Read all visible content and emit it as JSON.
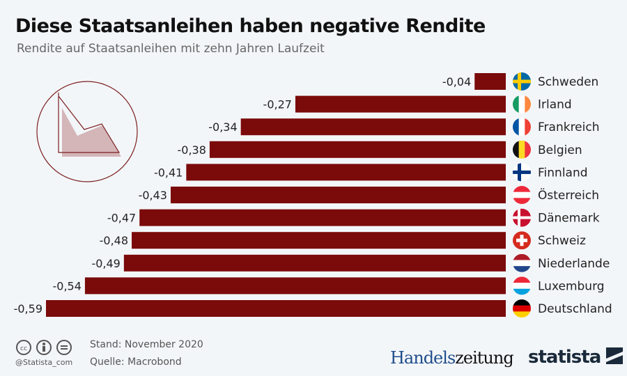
{
  "title": "Diese Staatsanleihen haben negative Rendite",
  "subtitle": "Rendite auf Staatsanleihen mit zehn Jahren Laufzeit",
  "colors": {
    "bar": "#7b0a0a",
    "background": "#f3f6f9"
  },
  "chart_data": {
    "type": "bar",
    "orientation": "horizontal",
    "categories": [
      "Schweden",
      "Irland",
      "Frankreich",
      "Belgien",
      "Finnland",
      "Österreich",
      "Dänemark",
      "Schweiz",
      "Niederlande",
      "Luxemburg",
      "Deutschland"
    ],
    "values": [
      -0.04,
      -0.27,
      -0.34,
      -0.38,
      -0.41,
      -0.43,
      -0.47,
      -0.48,
      -0.49,
      -0.54,
      -0.59
    ],
    "labels": [
      "-0,04",
      "-0,27",
      "-0,34",
      "-0,38",
      "-0,41",
      "-0,43",
      "-0,47",
      "-0,48",
      "-0,49",
      "-0,54",
      "-0,59"
    ],
    "flag_icons": [
      "flag-sweden",
      "flag-ireland",
      "flag-france",
      "flag-belgium",
      "flag-finland",
      "flag-austria",
      "flag-denmark",
      "flag-switzerland",
      "flag-netherlands",
      "flag-luxembourg",
      "flag-germany"
    ],
    "xlim": [
      -0.59,
      0
    ],
    "grid": false,
    "legend": "none"
  },
  "footer": {
    "date": "Stand: November 2020",
    "source": "Quelle: Macrobond",
    "handle": "@Statista_com",
    "cc_icons": [
      "cc-icon",
      "by-icon",
      "nd-icon"
    ]
  },
  "logos": {
    "handelszeitung_a": "Handels",
    "handelszeitung_b": "zeitung",
    "statista": "statista"
  }
}
